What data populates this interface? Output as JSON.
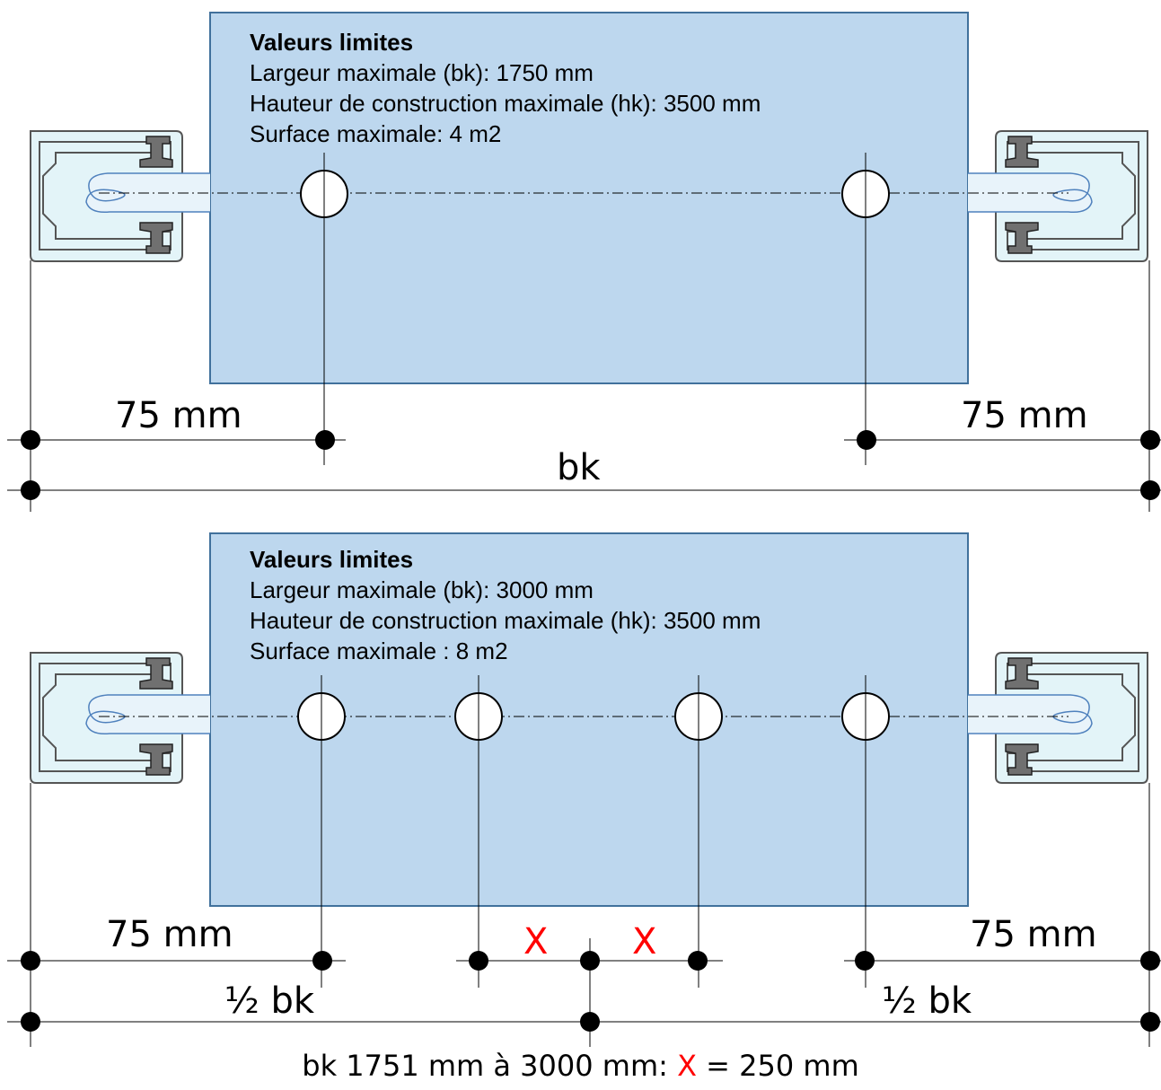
{
  "top": {
    "title": "Valeurs limites",
    "lines": [
      "Largeur maximale (bk): 1750 mm",
      "Hauteur de construction maximale (hk): 3500 mm",
      "Surface maximale: 4 m2"
    ],
    "dim_left": "75 mm",
    "dim_right": "75 mm",
    "dim_total": "bk"
  },
  "bottom": {
    "title": "Valeurs limites",
    "lines": [
      "Largeur maximale (bk): 3000 mm",
      "Hauteur de construction maximale (hk): 3500 mm",
      "Surface maximale : 8 m2"
    ],
    "dim_left": "75 mm",
    "dim_right": "75 mm",
    "x_left": "X",
    "x_right": "X",
    "half_left": "½ bk",
    "half_right": "½ bk"
  },
  "footer": {
    "prefix": "bk 1751 mm à 3000 mm: ",
    "x": "X",
    "suffix": " = 250 mm"
  },
  "colors": {
    "panel_fill": "#bdd7ee",
    "panel_stroke": "#41719c",
    "accent_red": "#ff0000"
  }
}
